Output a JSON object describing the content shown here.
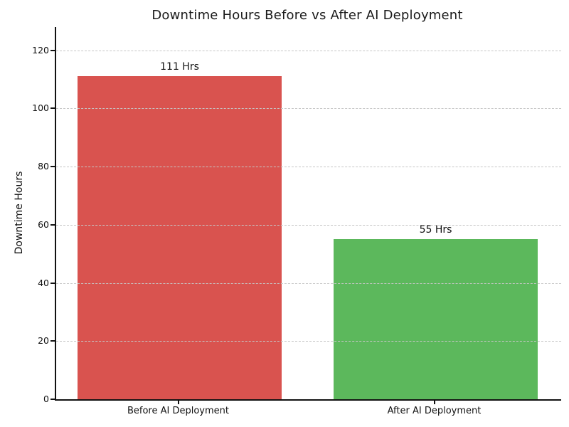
{
  "chart_data": {
    "type": "bar",
    "title": "Downtime Hours Before vs After AI Deployment",
    "xlabel": "",
    "ylabel": "Downtime Hours",
    "categories": [
      "Before AI Deployment",
      "After AI Deployment"
    ],
    "values": [
      111,
      55
    ],
    "bar_labels": [
      "111 Hrs",
      "55 Hrs"
    ],
    "bar_colors": [
      "#d9534f",
      "#5cb85c"
    ],
    "yticks": [
      0,
      20,
      40,
      60,
      80,
      100,
      120
    ],
    "ylim": [
      0,
      128
    ],
    "grid": "horizontal dashed gridlines drawn over bars",
    "gridline_color": "#c6c6c6",
    "axis_color": "#111111",
    "title_color": "#1a1a1a",
    "background_color": "#ffffff",
    "legend": "none"
  }
}
